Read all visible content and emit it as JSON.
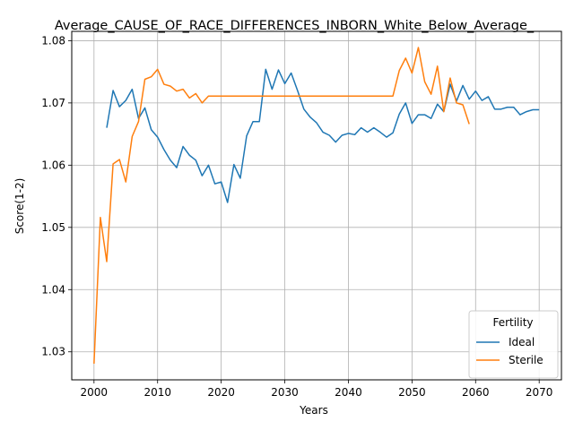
{
  "chart_data": {
    "type": "line",
    "title": "Average_CAUSE_OF_RACE_DIFFERENCES_INBORN_White_Below_Average_",
    "xlabel": "Years",
    "ylabel": "Score(1-2)",
    "xlim": [
      1996.5,
      2073.5
    ],
    "ylim": [
      1.0255,
      1.0815
    ],
    "x_ticks": [
      2000,
      2010,
      2020,
      2030,
      2040,
      2050,
      2060,
      2070
    ],
    "x_tick_labels": [
      "2000",
      "2010",
      "2020",
      "2030",
      "2040",
      "2050",
      "2060",
      "2070"
    ],
    "y_ticks": [
      1.03,
      1.04,
      1.05,
      1.06,
      1.07,
      1.08
    ],
    "y_tick_labels": [
      "1.03",
      "1.04",
      "1.05",
      "1.06",
      "1.07",
      "1.08"
    ],
    "grid": true,
    "legend": {
      "title": "Fertility",
      "placement": "lower-right"
    },
    "series": [
      {
        "name": "Ideal",
        "color": "#1f77b4",
        "x": [
          2002,
          2003,
          2004,
          2005,
          2006,
          2007,
          2008,
          2009,
          2010,
          2011,
          2012,
          2013,
          2014,
          2015,
          2016,
          2017,
          2018,
          2019,
          2020,
          2021,
          2022,
          2023,
          2024,
          2025,
          2026,
          2027,
          2028,
          2029,
          2030,
          2031,
          2032,
          2033,
          2034,
          2035,
          2036,
          2037,
          2038,
          2039,
          2040,
          2041,
          2042,
          2043,
          2044,
          2045,
          2046,
          2047,
          2048,
          2049,
          2050,
          2051,
          2052,
          2053,
          2054,
          2055,
          2056,
          2057,
          2058,
          2059,
          2060,
          2061,
          2062,
          2063,
          2064,
          2065,
          2066,
          2067,
          2068,
          2069,
          2070
        ],
        "values": [
          1.066,
          1.072,
          1.0694,
          1.0704,
          1.0722,
          1.0675,
          1.0692,
          1.0657,
          1.0645,
          1.0625,
          1.0608,
          1.0596,
          1.063,
          1.0616,
          1.0608,
          1.0583,
          1.06,
          1.057,
          1.0573,
          1.054,
          1.0601,
          1.0579,
          1.0647,
          1.067,
          1.067,
          1.0754,
          1.0722,
          1.0753,
          1.0731,
          1.0748,
          1.072,
          1.069,
          1.0677,
          1.0668,
          1.0653,
          1.0648,
          1.0637,
          1.0648,
          1.0651,
          1.0649,
          1.066,
          1.0653,
          1.066,
          1.0653,
          1.0645,
          1.0652,
          1.0682,
          1.07,
          1.0667,
          1.0681,
          1.0681,
          1.0675,
          1.0698,
          1.0686,
          1.073,
          1.0703,
          1.0728,
          1.0706,
          1.0719,
          1.0704,
          1.071,
          1.069,
          1.069,
          1.0693,
          1.0693,
          1.0681,
          1.0686,
          1.0689,
          1.0689
        ]
      },
      {
        "name": "Sterile",
        "color": "#ff7f0e",
        "x": [
          2000,
          2001,
          2002,
          2003,
          2004,
          2005,
          2006,
          2007,
          2008,
          2009,
          2010,
          2011,
          2012,
          2013,
          2014,
          2015,
          2016,
          2017,
          2018,
          2019,
          2020,
          2021,
          2022,
          2023,
          2024,
          2025,
          2026,
          2027,
          2028,
          2029,
          2030,
          2031,
          2032,
          2033,
          2034,
          2035,
          2036,
          2037,
          2038,
          2039,
          2040,
          2041,
          2042,
          2043,
          2044,
          2045,
          2046,
          2047,
          2048,
          2049,
          2050,
          2051,
          2052,
          2053,
          2054,
          2055,
          2056,
          2057,
          2058,
          2059
        ],
        "values": [
          1.0281,
          1.0516,
          1.0445,
          1.0602,
          1.0609,
          1.0573,
          1.0646,
          1.067,
          1.0738,
          1.0742,
          1.0754,
          1.073,
          1.0727,
          1.0719,
          1.0722,
          1.0708,
          1.0715,
          1.07,
          1.0711,
          1.0711,
          1.0711,
          1.0711,
          1.0711,
          1.0711,
          1.0711,
          1.0711,
          1.0711,
          1.0711,
          1.0711,
          1.0711,
          1.0711,
          1.0711,
          1.0711,
          1.0711,
          1.0711,
          1.0711,
          1.0711,
          1.0711,
          1.0711,
          1.0711,
          1.0711,
          1.0711,
          1.0711,
          1.0711,
          1.0711,
          1.0711,
          1.0711,
          1.0711,
          1.0752,
          1.0772,
          1.0748,
          1.0789,
          1.0734,
          1.0714,
          1.0759,
          1.0686,
          1.074,
          1.07,
          1.0697,
          1.0666
        ]
      }
    ]
  }
}
